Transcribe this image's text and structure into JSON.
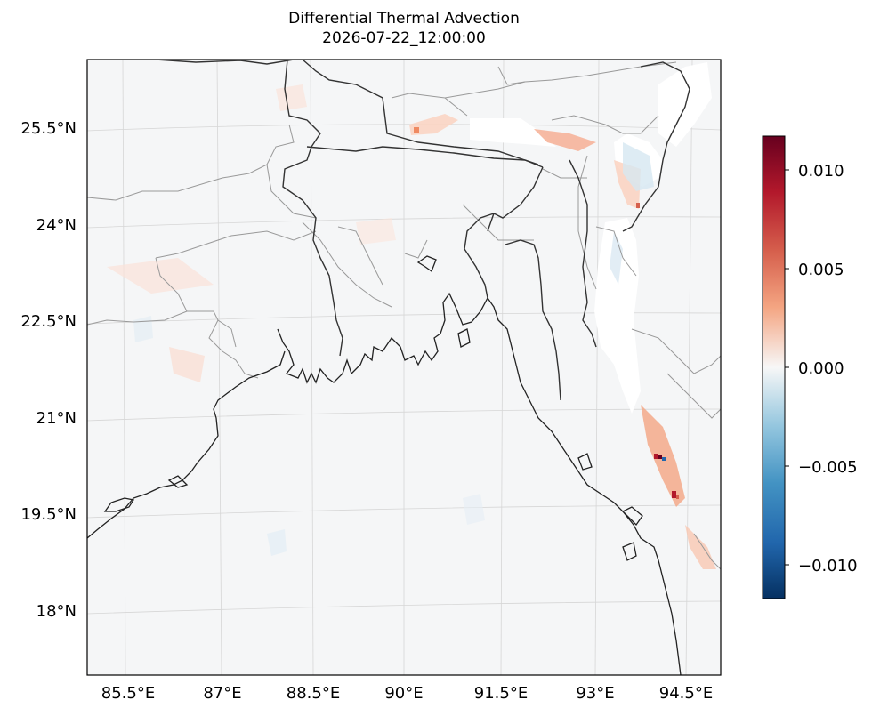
{
  "title": "Differential Thermal Advection",
  "subtitle": "2026-07-22_12:00:00",
  "latitude_labels": [
    "25.5°N",
    "24°N",
    "22.5°N",
    "21°N",
    "19.5°N",
    "18°N"
  ],
  "longitude_labels": [
    "85.5°E",
    "87°E",
    "88.5°E",
    "90°E",
    "91.5°E",
    "93°E",
    "94.5°E"
  ],
  "colorbar": {
    "colormap": "RdBu_r",
    "ticks": [
      "0.010",
      "0.005",
      "0.000",
      "−0.005",
      "−0.010"
    ],
    "colors": {
      "max": "#67001f",
      "high": "#d6604d",
      "mid_high": "#f4a582",
      "zero": "#f7f7f7",
      "mid_low": "#92c5de",
      "low": "#4393c3",
      "min": "#053061"
    }
  },
  "map": {
    "coastline_color": "#222222",
    "border_color": "#333333",
    "state_border_color": "#999999",
    "gridline_color": "#d0d0d0",
    "background_color": "#f5f6f7"
  }
}
